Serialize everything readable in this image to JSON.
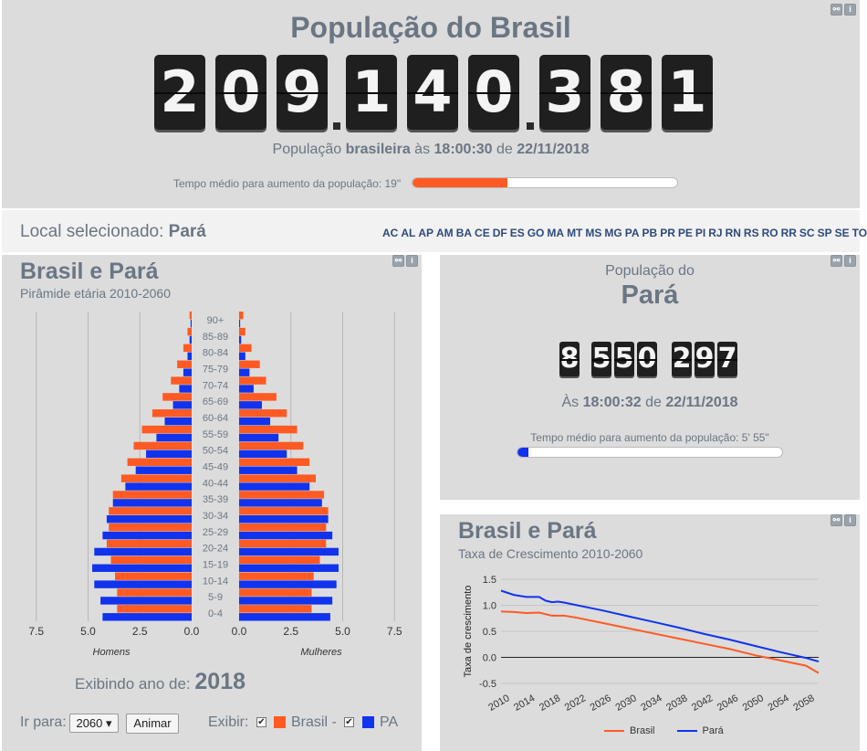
{
  "top": {
    "title": "População do Brasil",
    "digits": [
      "2",
      "0",
      "9",
      "1",
      "4",
      "0",
      "3",
      "8",
      "1"
    ],
    "caption": {
      "prefix": "População ",
      "bold1": "brasileira",
      "mid": " às ",
      "time": "18:00:30",
      "de": " de ",
      "date": "22/11/2018"
    },
    "progress_label": "Tempo médio para aumento da população: 19\"",
    "progress_fraction": 0.36,
    "progress_color": "#ff5a23"
  },
  "local": {
    "label": "Local selecionado: ",
    "value": "Pará",
    "states": [
      "AC",
      "AL",
      "AP",
      "AM",
      "BA",
      "CE",
      "DF",
      "ES",
      "GO",
      "MA",
      "MT",
      "MS",
      "MG",
      "PA",
      "PB",
      "PR",
      "PE",
      "PI",
      "RJ",
      "RN",
      "RS",
      "RO",
      "RR",
      "SC",
      "SP",
      "SE",
      "TO"
    ]
  },
  "pyramid": {
    "title": "Brasil e Pará",
    "subtitle": "Pirâmide etária 2010-2060",
    "left_ticks": [
      "7.5",
      "5.0",
      "2.5",
      "0.0"
    ],
    "right_ticks": [
      "0.0",
      "2.5",
      "5.0",
      "7.5"
    ],
    "label_men": "Homens",
    "label_women": "Mulheres",
    "showing_label": "Exibindo ano de: ",
    "year": "2018",
    "goto_label": "Ir para:",
    "goto_value": "2060 ▾",
    "animate_label": "Animar",
    "show_label": "Exibir:",
    "legend_brasil": "Brasil -",
    "legend_pa": "PA",
    "color_brasil": "#ff5a23",
    "color_pa": "#1133ee",
    "chart_data": {
      "type": "bar",
      "categories": [
        "90+",
        "85-89",
        "80-84",
        "75-79",
        "70-74",
        "65-69",
        "60-64",
        "55-59",
        "50-54",
        "45-49",
        "40-44",
        "35-39",
        "30-34",
        "25-29",
        "20-24",
        "15-19",
        "10-14",
        "5-9",
        "0-4"
      ],
      "series": [
        {
          "name": "Brasil",
          "side": "Homens",
          "values": [
            0.1,
            0.2,
            0.4,
            0.7,
            1.0,
            1.4,
            1.9,
            2.4,
            2.8,
            3.1,
            3.4,
            3.8,
            4.0,
            4.0,
            4.1,
            3.9,
            3.7,
            3.6,
            3.6
          ]
        },
        {
          "name": "PA",
          "side": "Homens",
          "values": [
            0.05,
            0.1,
            0.2,
            0.4,
            0.6,
            0.9,
            1.3,
            1.7,
            2.2,
            2.7,
            3.2,
            3.8,
            4.1,
            4.3,
            4.7,
            4.8,
            4.7,
            4.4,
            4.3
          ]
        },
        {
          "name": "Brasil",
          "side": "Mulheres",
          "values": [
            0.2,
            0.3,
            0.6,
            1.0,
            1.3,
            1.8,
            2.3,
            2.8,
            3.1,
            3.4,
            3.7,
            4.1,
            4.3,
            4.2,
            4.2,
            3.9,
            3.6,
            3.5,
            3.5
          ]
        },
        {
          "name": "PA",
          "side": "Mulheres",
          "values": [
            0.05,
            0.1,
            0.3,
            0.5,
            0.7,
            1.1,
            1.5,
            1.9,
            2.3,
            2.8,
            3.4,
            4.0,
            4.3,
            4.5,
            4.8,
            4.8,
            4.7,
            4.5,
            4.4
          ]
        }
      ],
      "xlim": [
        0,
        7.5
      ]
    }
  },
  "para_counter": {
    "title_small": "População do",
    "title_big": "Pará",
    "digits": [
      "8",
      "5",
      "5",
      "0",
      "2",
      "9",
      "7"
    ],
    "caption": {
      "prefix": "Às ",
      "time": "18:00:32",
      "de": " de ",
      "date": "22/11/2018"
    },
    "progress_label": "Tempo médio para aumento da população: 5' 55\"",
    "progress_fraction": 0.04,
    "progress_color": "#1133ee"
  },
  "growth": {
    "title": "Brasil e Pará",
    "subtitle": "Taxa de Crescimento 2010-2060",
    "legend": [
      "Brasil",
      "Pará"
    ],
    "chart_data": {
      "type": "line",
      "ylabel": "Taxa de crescimento",
      "xlabel": "",
      "x_ticks": [
        "2010",
        "2014",
        "2018",
        "2022",
        "2026",
        "2030",
        "2034",
        "2038",
        "2042",
        "2046",
        "2050",
        "2054",
        "2058"
      ],
      "y_ticks": [
        "1.5",
        "1.0",
        "0.5",
        "0.0",
        "-0.5"
      ],
      "ylim": [
        -0.5,
        1.5
      ],
      "xlim": [
        2010,
        2060
      ],
      "series": [
        {
          "name": "Brasil",
          "color": "#ff5a23",
          "x": [
            2010,
            2012,
            2014,
            2016,
            2018,
            2019,
            2020,
            2022,
            2026,
            2030,
            2034,
            2038,
            2042,
            2046,
            2050,
            2054,
            2058,
            2060
          ],
          "y": [
            0.88,
            0.87,
            0.85,
            0.86,
            0.8,
            0.8,
            0.8,
            0.76,
            0.66,
            0.56,
            0.46,
            0.36,
            0.26,
            0.16,
            0.04,
            -0.06,
            -0.16,
            -0.3
          ]
        },
        {
          "name": "Pará",
          "color": "#1133ee",
          "x": [
            2010,
            2012,
            2014,
            2016,
            2017,
            2018,
            2019,
            2020,
            2022,
            2026,
            2030,
            2034,
            2038,
            2042,
            2046,
            2050,
            2054,
            2058,
            2060
          ],
          "y": [
            1.28,
            1.2,
            1.16,
            1.16,
            1.09,
            1.06,
            1.07,
            1.05,
            1.0,
            0.9,
            0.79,
            0.68,
            0.57,
            0.45,
            0.34,
            0.22,
            0.1,
            -0.01,
            -0.08
          ]
        }
      ]
    }
  }
}
